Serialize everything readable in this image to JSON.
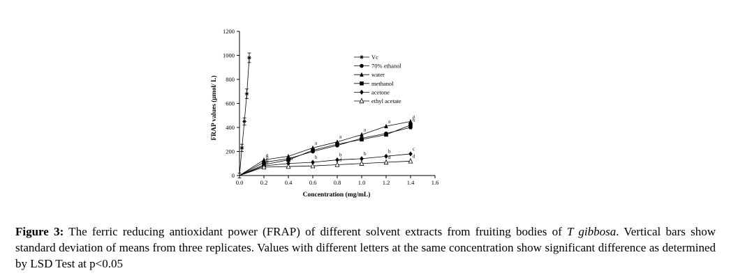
{
  "caption": {
    "label": "Figure 3:",
    "text_before_italic": " The ferric reducing antioxidant power (FRAP) of different solvent extracts from fruiting bodies of ",
    "italic": "T gibbosa",
    "text_after_italic": ". Vertical bars show standard deviation of means from three replicates. Values with different letters at the same concentration show significant difference as determined by LSD Test at p<0.05"
  },
  "chart_data": {
    "type": "line",
    "title": "",
    "xlabel": "Concentration (mg/mL)",
    "ylabel": "FRAP values (μmol/ L)",
    "xlim": [
      0,
      1.6
    ],
    "ylim": [
      0,
      1200
    ],
    "xticks": [
      "0.0",
      "0.2",
      "0.4",
      "0.6",
      "0.8",
      "1.0",
      "1.2",
      "1.4",
      "1.6"
    ],
    "yticks": [
      "0",
      "200",
      "400",
      "600",
      "800",
      "1000",
      "1200"
    ],
    "grid": false,
    "legend_position": "top-right",
    "series": [
      {
        "name": "Vc",
        "marker": "star",
        "x": [
          0,
          0.02,
          0.04,
          0.06,
          0.08
        ],
        "values": [
          0,
          230,
          450,
          680,
          980
        ],
        "letters": [
          "",
          "",
          "",
          "",
          ""
        ]
      },
      {
        "name": "70% ethanol",
        "marker": "circle",
        "x": [
          0,
          0.2,
          0.4,
          0.6,
          0.8,
          1.0,
          1.2,
          1.4
        ],
        "values": [
          0,
          110,
          140,
          200,
          250,
          310,
          350,
          400
        ],
        "letters": [
          "",
          "b",
          "",
          "",
          "",
          "",
          "",
          ""
        ]
      },
      {
        "name": "water",
        "marker": "triangle",
        "x": [
          0,
          0.2,
          0.4,
          0.6,
          0.8,
          1.0,
          1.2,
          1.4
        ],
        "values": [
          0,
          130,
          160,
          230,
          280,
          340,
          410,
          450
        ],
        "letters": [
          "",
          "a",
          "",
          "a",
          "a",
          "a",
          "a",
          "a"
        ]
      },
      {
        "name": "methanol",
        "marker": "square",
        "x": [
          0,
          0.2,
          0.4,
          0.6,
          0.8,
          1.0,
          1.2,
          1.4
        ],
        "values": [
          0,
          90,
          130,
          210,
          260,
          300,
          340,
          420
        ],
        "letters": [
          "",
          "",
          "",
          "",
          "",
          "",
          "",
          "b"
        ]
      },
      {
        "name": "acetone",
        "marker": "diamond",
        "x": [
          0,
          0.2,
          0.4,
          0.6,
          0.8,
          1.0,
          1.2,
          1.4
        ],
        "values": [
          0,
          80,
          100,
          110,
          130,
          140,
          160,
          180
        ],
        "letters": [
          "",
          "b",
          "b",
          "b",
          "b",
          "b",
          "b",
          "c"
        ]
      },
      {
        "name": "ethyl acetate",
        "marker": "open-triangle",
        "x": [
          0,
          0.2,
          0.4,
          0.6,
          0.8,
          1.0,
          1.2,
          1.4
        ],
        "values": [
          0,
          70,
          75,
          80,
          90,
          100,
          110,
          120
        ],
        "letters": [
          "",
          "b",
          "",
          "",
          "d",
          "",
          "d",
          "d"
        ]
      }
    ],
    "error_bars": {
      "Vc": [
        20,
        30,
        30,
        40,
        40
      ]
    }
  }
}
